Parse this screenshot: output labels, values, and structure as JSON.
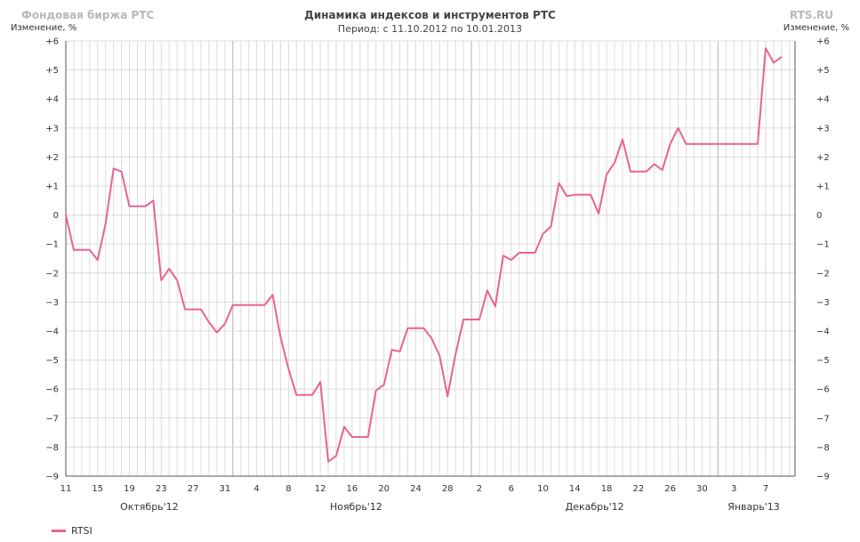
{
  "header": {
    "brand": "Фондовая биржа РТС",
    "site": "RTS.RU",
    "title": "Динамика индексов и инструментов РТС",
    "period": "Период: с 11.10.2012 по 10.01.2013",
    "ylabel_left": "Изменение, %",
    "ylabel_right": "Изменение, %"
  },
  "colors": {
    "series": "#e9638f",
    "grid": "#dcdcdc",
    "grid_major": "#b8b8b8",
    "axis": "#555555"
  },
  "chart_data": {
    "type": "line",
    "title": "Динамика индексов и инструментов РТС",
    "ylabel": "Изменение, %",
    "ylim": [
      -9,
      6
    ],
    "yticks": [
      {
        "v": 6,
        "label": "+6"
      },
      {
        "v": 5,
        "label": "+5"
      },
      {
        "v": 4,
        "label": "+4"
      },
      {
        "v": 3,
        "label": "+3"
      },
      {
        "v": 2,
        "label": "+2"
      },
      {
        "v": 1,
        "label": "+1"
      },
      {
        "v": 0,
        "label": "0"
      },
      {
        "v": -1,
        "label": "−1"
      },
      {
        "v": -2,
        "label": "−2"
      },
      {
        "v": -3,
        "label": "−3"
      },
      {
        "v": -4,
        "label": "−4"
      },
      {
        "v": -5,
        "label": "−5"
      },
      {
        "v": -6,
        "label": "−6"
      },
      {
        "v": -7,
        "label": "−7"
      },
      {
        "v": -8,
        "label": "−8"
      },
      {
        "v": -9,
        "label": "−9"
      }
    ],
    "x_day_range": [
      0,
      91.7
    ],
    "day_tick_every": 1,
    "xticks": [
      {
        "day": 0,
        "label": "11"
      },
      {
        "day": 4,
        "label": "15"
      },
      {
        "day": 8,
        "label": "19"
      },
      {
        "day": 12,
        "label": "23"
      },
      {
        "day": 16,
        "label": "27"
      },
      {
        "day": 20,
        "label": "31"
      },
      {
        "day": 24,
        "label": "4"
      },
      {
        "day": 28,
        "label": "8"
      },
      {
        "day": 32,
        "label": "12"
      },
      {
        "day": 36,
        "label": "16"
      },
      {
        "day": 40,
        "label": "20"
      },
      {
        "day": 44,
        "label": "24"
      },
      {
        "day": 48,
        "label": "28"
      },
      {
        "day": 52,
        "label": "2"
      },
      {
        "day": 56,
        "label": "6"
      },
      {
        "day": 60,
        "label": "10"
      },
      {
        "day": 64,
        "label": "14"
      },
      {
        "day": 68,
        "label": "18"
      },
      {
        "day": 72,
        "label": "22"
      },
      {
        "day": 76,
        "label": "26"
      },
      {
        "day": 80,
        "label": "30"
      },
      {
        "day": 84,
        "label": "3"
      },
      {
        "day": 88,
        "label": "7"
      }
    ],
    "month_starts": [
      21,
      51,
      82
    ],
    "months": [
      {
        "day": 10.5,
        "label": "Октябрь'12"
      },
      {
        "day": 36.5,
        "label": "Ноябрь'12"
      },
      {
        "day": 66.5,
        "label": "Декабрь'12"
      },
      {
        "day": 86.5,
        "label": "Январь'13"
      }
    ],
    "series": [
      {
        "name": "RTSI",
        "points": [
          [
            0,
            0.0
          ],
          [
            1,
            -1.2
          ],
          [
            2,
            -1.2
          ],
          [
            3,
            -1.2
          ],
          [
            4,
            -1.55
          ],
          [
            5,
            -0.3
          ],
          [
            6,
            1.6
          ],
          [
            7,
            1.5
          ],
          [
            8,
            0.3
          ],
          [
            9,
            0.3
          ],
          [
            10,
            0.3
          ],
          [
            11,
            0.5
          ],
          [
            12,
            -2.25
          ],
          [
            13,
            -1.85
          ],
          [
            14,
            -2.25
          ],
          [
            15,
            -3.25
          ],
          [
            16,
            -3.25
          ],
          [
            17,
            -3.25
          ],
          [
            18,
            -3.7
          ],
          [
            19,
            -4.05
          ],
          [
            20,
            -3.75
          ],
          [
            21,
            -3.1
          ],
          [
            22,
            -3.1
          ],
          [
            23,
            -3.1
          ],
          [
            24,
            -3.1
          ],
          [
            25,
            -3.1
          ],
          [
            26,
            -2.75
          ],
          [
            27,
            -4.2
          ],
          [
            28,
            -5.3
          ],
          [
            29,
            -6.2
          ],
          [
            30,
            -6.2
          ],
          [
            31,
            -6.2
          ],
          [
            32,
            -5.75
          ],
          [
            33,
            -8.5
          ],
          [
            34,
            -8.3
          ],
          [
            35,
            -7.3
          ],
          [
            36,
            -7.65
          ],
          [
            37,
            -7.65
          ],
          [
            38,
            -7.65
          ],
          [
            39,
            -6.05
          ],
          [
            40,
            -5.85
          ],
          [
            41,
            -4.65
          ],
          [
            42,
            -4.7
          ],
          [
            43,
            -3.9
          ],
          [
            44,
            -3.9
          ],
          [
            45,
            -3.9
          ],
          [
            46,
            -4.25
          ],
          [
            47,
            -4.85
          ],
          [
            48,
            -6.25
          ],
          [
            49,
            -4.8
          ],
          [
            50,
            -3.6
          ],
          [
            51,
            -3.6
          ],
          [
            52,
            -3.6
          ],
          [
            53,
            -2.6
          ],
          [
            54,
            -3.15
          ],
          [
            55,
            -1.4
          ],
          [
            56,
            -1.55
          ],
          [
            57,
            -1.3
          ],
          [
            58,
            -1.3
          ],
          [
            59,
            -1.3
          ],
          [
            60,
            -0.65
          ],
          [
            61,
            -0.4
          ],
          [
            62,
            1.1
          ],
          [
            63,
            0.65
          ],
          [
            64,
            0.7
          ],
          [
            65,
            0.7
          ],
          [
            66,
            0.7
          ],
          [
            67,
            0.05
          ],
          [
            68,
            1.4
          ],
          [
            69,
            1.8
          ],
          [
            70,
            2.6
          ],
          [
            71,
            1.5
          ],
          [
            72,
            1.5
          ],
          [
            73,
            1.5
          ],
          [
            74,
            1.75
          ],
          [
            75,
            1.55
          ],
          [
            76,
            2.45
          ],
          [
            77,
            3.0
          ],
          [
            78,
            2.45
          ],
          [
            79,
            2.45
          ],
          [
            80,
            2.45
          ],
          [
            81,
            2.45
          ],
          [
            82,
            2.45
          ],
          [
            83,
            2.45
          ],
          [
            84,
            2.45
          ],
          [
            85,
            2.45
          ],
          [
            86,
            2.45
          ],
          [
            87,
            2.45
          ],
          [
            88,
            5.75
          ],
          [
            89,
            5.25
          ],
          [
            90,
            5.45
          ]
        ]
      }
    ]
  },
  "legend": {
    "label": "RTSI"
  }
}
